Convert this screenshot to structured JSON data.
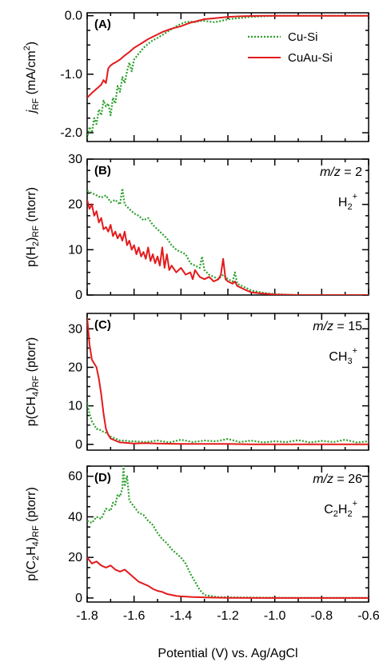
{
  "colors": {
    "cu_si": "#2ca02c",
    "cuau_si": "#e41a1c",
    "axis": "#000000"
  },
  "legend": {
    "placement": "top-right of panel A",
    "entries": [
      "Cu-Si",
      "CuAu-Si"
    ]
  },
  "x_axis": {
    "label": "Potential (V) vs. Ag/AgCl",
    "range": [
      -1.8,
      -0.6
    ],
    "ticks": [
      "-1.8",
      "-1.6",
      "-1.4",
      "-1.2",
      "-1.0",
      "-0.8",
      "-0.6"
    ]
  },
  "chart_data": [
    {
      "type": "line",
      "panel": "(A)",
      "ylabel_parts": {
        "main": "j",
        "sub": "RF",
        "unit_pre": " (mA/cm",
        "sup": "2",
        "unit_post": ")"
      },
      "ylim": [
        -2.15,
        0.05
      ],
      "yticks": [
        {
          "v": 0,
          "label": "0.0"
        },
        {
          "v": -1,
          "label": "-1.0"
        },
        {
          "v": -2,
          "label": "-2.0"
        }
      ],
      "series": [
        {
          "name": "Cu-Si",
          "style": "dotted",
          "color": "#2ca02c",
          "x": [
            -1.8,
            -1.79,
            -1.78,
            -1.77,
            -1.76,
            -1.75,
            -1.74,
            -1.73,
            -1.72,
            -1.71,
            -1.7,
            -1.69,
            -1.68,
            -1.67,
            -1.66,
            -1.65,
            -1.64,
            -1.63,
            -1.62,
            -1.61,
            -1.6,
            -1.58,
            -1.56,
            -1.54,
            -1.52,
            -1.5,
            -1.48,
            -1.46,
            -1.44,
            -1.42,
            -1.4,
            -1.38,
            -1.36,
            -1.34,
            -1.32,
            -1.3,
            -1.28,
            -1.26,
            -1.24,
            -1.22,
            -1.2,
            -1.15,
            -1.1,
            -1.05,
            -1.0,
            -0.9,
            -0.8,
            -0.7,
            -0.6
          ],
          "y": [
            -2.1,
            -1.9,
            -2.0,
            -1.75,
            -1.85,
            -1.6,
            -1.7,
            -1.45,
            -1.55,
            -1.5,
            -1.7,
            -1.4,
            -1.5,
            -1.2,
            -1.3,
            -1.05,
            -1.15,
            -0.95,
            -0.8,
            -0.95,
            -0.75,
            -0.65,
            -0.55,
            -0.48,
            -0.42,
            -0.38,
            -0.33,
            -0.28,
            -0.23,
            -0.18,
            -0.14,
            -0.11,
            -0.1,
            -0.11,
            -0.09,
            -0.09,
            -0.1,
            -0.11,
            -0.1,
            -0.08,
            -0.06,
            -0.04,
            -0.02,
            -0.01,
            0,
            0,
            0,
            0,
            0
          ]
        },
        {
          "name": "CuAu-Si",
          "style": "solid",
          "color": "#e41a1c",
          "x": [
            -1.8,
            -1.78,
            -1.76,
            -1.74,
            -1.73,
            -1.72,
            -1.71,
            -1.7,
            -1.69,
            -1.68,
            -1.66,
            -1.64,
            -1.62,
            -1.6,
            -1.58,
            -1.56,
            -1.54,
            -1.52,
            -1.5,
            -1.48,
            -1.46,
            -1.44,
            -1.42,
            -1.4,
            -1.38,
            -1.36,
            -1.34,
            -1.32,
            -1.3,
            -1.25,
            -1.2,
            -1.15,
            -1.1,
            -1.05,
            -1.0,
            -0.9,
            -0.8,
            -0.7,
            -0.6
          ],
          "y": [
            -1.4,
            -1.32,
            -1.25,
            -1.18,
            -1.1,
            -1.15,
            -0.9,
            -0.85,
            -0.82,
            -0.8,
            -0.75,
            -0.68,
            -0.62,
            -0.55,
            -0.5,
            -0.45,
            -0.4,
            -0.36,
            -0.32,
            -0.28,
            -0.25,
            -0.22,
            -0.2,
            -0.18,
            -0.15,
            -0.12,
            -0.1,
            -0.08,
            -0.06,
            -0.04,
            -0.02,
            -0.01,
            -0.005,
            0,
            0,
            0,
            0,
            0,
            0
          ]
        }
      ]
    },
    {
      "type": "line",
      "panel": "(B)",
      "ylabel_parts": {
        "pre": "p(H",
        "sub1": "2",
        "post": ")",
        "sub": "RF",
        "unit": " (ntorr)"
      },
      "annotation": {
        "mz_text": "m/z",
        "mz_value": " = 2",
        "ion_main": "H",
        "ion_sub": "2",
        "ion_sup": "+"
      },
      "ylim": [
        0,
        30
      ],
      "yticks": [
        {
          "v": 0,
          "label": "0"
        },
        {
          "v": 10,
          "label": "10"
        },
        {
          "v": 20,
          "label": "20"
        },
        {
          "v": 30,
          "label": "30"
        }
      ],
      "series": [
        {
          "name": "Cu-Si",
          "style": "dotted",
          "color": "#2ca02c",
          "x": [
            -1.8,
            -1.78,
            -1.76,
            -1.74,
            -1.72,
            -1.7,
            -1.68,
            -1.66,
            -1.65,
            -1.64,
            -1.62,
            -1.6,
            -1.58,
            -1.56,
            -1.54,
            -1.52,
            -1.5,
            -1.48,
            -1.46,
            -1.44,
            -1.42,
            -1.4,
            -1.38,
            -1.36,
            -1.34,
            -1.32,
            -1.31,
            -1.3,
            -1.28,
            -1.26,
            -1.24,
            -1.22,
            -1.2,
            -1.18,
            -1.17,
            -1.16,
            -1.14,
            -1.12,
            -1.1,
            -1.05,
            -1.0,
            -0.9,
            -0.8,
            -0.7,
            -0.6
          ],
          "y": [
            23,
            22.5,
            22,
            21.5,
            22,
            20.5,
            21,
            20,
            23.5,
            20,
            19,
            18,
            17.5,
            16.5,
            17,
            15.5,
            14.5,
            13.5,
            12.5,
            11,
            10,
            9.5,
            9,
            7,
            6.5,
            6,
            8.5,
            5.5,
            4.5,
            4,
            3.5,
            4.5,
            3.5,
            3,
            5,
            2.5,
            2,
            1.5,
            1,
            0.5,
            0.2,
            0,
            0,
            0,
            0
          ]
        },
        {
          "name": "CuAu-Si",
          "style": "solid",
          "color": "#e41a1c",
          "x": [
            -1.8,
            -1.79,
            -1.78,
            -1.77,
            -1.76,
            -1.75,
            -1.74,
            -1.73,
            -1.72,
            -1.71,
            -1.7,
            -1.69,
            -1.68,
            -1.67,
            -1.66,
            -1.65,
            -1.64,
            -1.63,
            -1.62,
            -1.61,
            -1.6,
            -1.59,
            -1.58,
            -1.57,
            -1.56,
            -1.55,
            -1.54,
            -1.53,
            -1.52,
            -1.51,
            -1.5,
            -1.49,
            -1.48,
            -1.47,
            -1.46,
            -1.45,
            -1.44,
            -1.42,
            -1.4,
            -1.38,
            -1.36,
            -1.35,
            -1.34,
            -1.32,
            -1.3,
            -1.28,
            -1.26,
            -1.24,
            -1.23,
            -1.22,
            -1.21,
            -1.2,
            -1.18,
            -1.17,
            -1.16,
            -1.14,
            -1.12,
            -1.1,
            -1.05,
            -1.0,
            -0.9,
            -0.8,
            -0.7,
            -0.6
          ],
          "y": [
            21,
            19,
            20,
            17.5,
            18.5,
            16,
            17,
            14.5,
            15,
            14,
            15.5,
            13,
            14,
            12.5,
            13.5,
            12,
            14,
            11,
            12,
            10,
            11,
            9,
            10.5,
            8.5,
            9.5,
            8,
            10.5,
            7.5,
            9,
            7,
            8.5,
            6.5,
            10.5,
            6,
            9,
            5.5,
            6.5,
            5,
            6,
            4.5,
            5,
            3.5,
            5.5,
            4,
            3.5,
            4,
            3,
            3.5,
            4.5,
            8,
            3.5,
            3,
            2.5,
            3,
            2,
            1.5,
            1,
            0.6,
            0.3,
            0.1,
            0,
            0,
            0,
            0
          ]
        }
      ]
    },
    {
      "type": "line",
      "panel": "(C)",
      "ylabel_parts": {
        "pre": "p(CH",
        "sub1": "4",
        "post": ")",
        "sub": "RF",
        "unit": " (ptorr)"
      },
      "annotation": {
        "mz_text": "m/z",
        "mz_value": " = 15",
        "ion_main": "CH",
        "ion_sub": "3",
        "ion_sup": "+"
      },
      "ylim": [
        -1.5,
        34
      ],
      "yticks": [
        {
          "v": 0,
          "label": "0"
        },
        {
          "v": 10,
          "label": "10"
        },
        {
          "v": 20,
          "label": "20"
        },
        {
          "v": 30,
          "label": "30"
        }
      ],
      "series": [
        {
          "name": "Cu-Si",
          "style": "dotted",
          "color": "#2ca02c",
          "x": [
            -1.8,
            -1.79,
            -1.78,
            -1.77,
            -1.76,
            -1.75,
            -1.74,
            -1.72,
            -1.7,
            -1.68,
            -1.66,
            -1.64,
            -1.62,
            -1.6,
            -1.55,
            -1.5,
            -1.45,
            -1.4,
            -1.35,
            -1.3,
            -1.25,
            -1.2,
            -1.15,
            -1.1,
            -1.05,
            -1.0,
            -0.95,
            -0.9,
            -0.85,
            -0.8,
            -0.75,
            -0.7,
            -0.65,
            -0.6
          ],
          "y": [
            11,
            8,
            6,
            5,
            4,
            4,
            3.5,
            3,
            2,
            1.5,
            1,
            1,
            0.8,
            0.8,
            0.6,
            1,
            0.5,
            1.2,
            0.6,
            1,
            0.8,
            1.4,
            0.6,
            1,
            0.5,
            0.8,
            0.6,
            1.1,
            0.5,
            0.9,
            0.6,
            1.2,
            0.5,
            0.8
          ]
        },
        {
          "name": "CuAu-Si",
          "style": "solid",
          "color": "#e41a1c",
          "x": [
            -1.8,
            -1.79,
            -1.78,
            -1.77,
            -1.76,
            -1.75,
            -1.74,
            -1.73,
            -1.72,
            -1.71,
            -1.7,
            -1.68,
            -1.66,
            -1.64,
            -1.62,
            -1.6,
            -1.55,
            -1.5,
            -1.4,
            -1.3,
            -1.2,
            -1.1,
            -1.0,
            -0.9,
            -0.8,
            -0.7,
            -0.6
          ],
          "y": [
            33,
            26,
            22,
            21,
            20,
            17,
            13,
            8,
            4,
            2.5,
            1.5,
            1,
            0.5,
            0.4,
            0.3,
            0.2,
            0.3,
            0.2,
            0.1,
            0.1,
            0.1,
            0,
            0,
            0,
            0,
            0,
            0
          ]
        }
      ]
    },
    {
      "type": "line",
      "panel": "(D)",
      "ylabel_parts": {
        "pre": "p(C",
        "sub1": "2",
        "mid": "H",
        "sub2": "4",
        "post": ")",
        "sub": "RF",
        "unit": " (ptorr)"
      },
      "annotation": {
        "mz_text": "m/z",
        "mz_value": " = 26",
        "ion_main": "C",
        "ion_sub_a": "2",
        "ion_main_b": "H",
        "ion_sub": "2",
        "ion_sup": "+"
      },
      "ylim": [
        -2,
        65
      ],
      "yticks": [
        {
          "v": 0,
          "label": "0"
        },
        {
          "v": 20,
          "label": "20"
        },
        {
          "v": 40,
          "label": "40"
        },
        {
          "v": 60,
          "label": "60"
        }
      ],
      "series": [
        {
          "name": "Cu-Si",
          "style": "dotted",
          "color": "#2ca02c",
          "x": [
            -1.8,
            -1.78,
            -1.76,
            -1.74,
            -1.72,
            -1.7,
            -1.69,
            -1.68,
            -1.67,
            -1.66,
            -1.65,
            -1.645,
            -1.64,
            -1.63,
            -1.62,
            -1.6,
            -1.58,
            -1.56,
            -1.54,
            -1.52,
            -1.5,
            -1.48,
            -1.46,
            -1.44,
            -1.42,
            -1.4,
            -1.38,
            -1.36,
            -1.34,
            -1.32,
            -1.3,
            -1.25,
            -1.2,
            -1.1,
            -1.0,
            -0.9,
            -0.8,
            -0.7,
            -0.6
          ],
          "y": [
            38,
            37,
            40,
            39,
            44,
            43,
            47,
            46,
            51,
            50,
            54,
            66,
            55,
            60,
            48,
            45,
            42,
            41,
            38,
            36,
            32,
            29,
            27,
            24,
            22,
            20,
            17,
            12,
            8,
            4,
            1.5,
            0.5,
            0.3,
            0.2,
            0.1,
            0,
            0,
            0,
            0
          ]
        },
        {
          "name": "CuAu-Si",
          "style": "solid",
          "color": "#e41a1c",
          "x": [
            -1.8,
            -1.78,
            -1.76,
            -1.74,
            -1.72,
            -1.7,
            -1.68,
            -1.66,
            -1.64,
            -1.62,
            -1.6,
            -1.58,
            -1.56,
            -1.54,
            -1.52,
            -1.5,
            -1.48,
            -1.46,
            -1.44,
            -1.42,
            -1.4,
            -1.35,
            -1.3,
            -1.2,
            -1.1,
            -1.0,
            -0.9,
            -0.8,
            -0.7,
            -0.6
          ],
          "y": [
            20,
            17,
            18,
            16,
            15,
            16,
            14,
            13,
            14,
            12,
            10,
            8,
            7,
            6,
            4.5,
            3.5,
            3,
            2,
            1.5,
            1,
            0.8,
            0.5,
            0.3,
            0.1,
            0,
            0,
            0,
            0,
            0,
            0
          ]
        }
      ]
    }
  ]
}
